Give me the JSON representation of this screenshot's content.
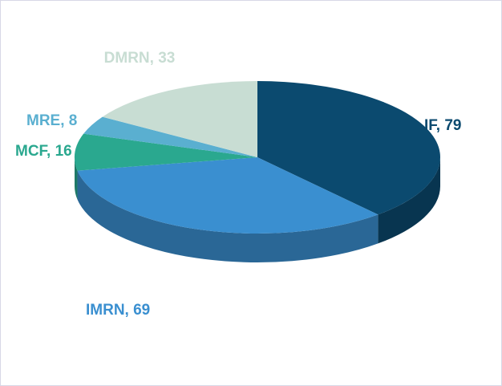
{
  "chart_data": {
    "type": "pie3d",
    "values": [
      79,
      69,
      16,
      8,
      33
    ],
    "value_labels": [
      "IF, 79",
      "IMRN, 69",
      "MCF, 16",
      "MRE, 8",
      "DMRN, 33"
    ],
    "colors": [
      "#0b4a6f",
      "#3a8fd0",
      "#2aa88f",
      "#5aafd0",
      "#c8ddd3"
    ]
  }
}
